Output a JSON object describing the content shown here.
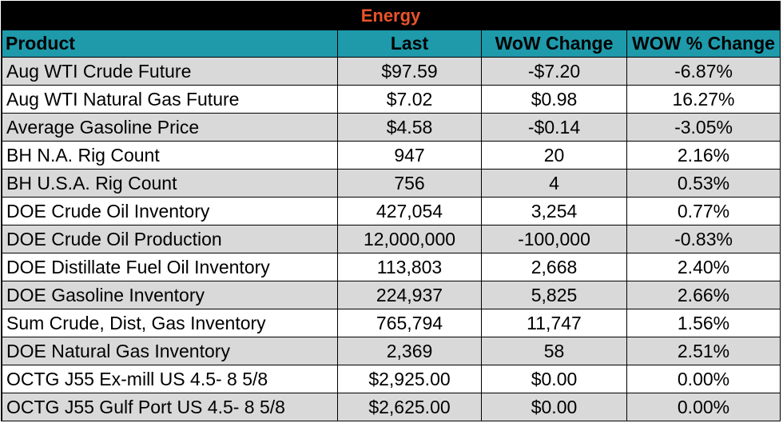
{
  "title": "Energy",
  "headers": [
    "Product",
    "Last",
    "WoW Change",
    "WOW % Change"
  ],
  "rows": [
    [
      "Aug WTI Crude Future",
      "$97.59",
      "-$7.20",
      "-6.87%"
    ],
    [
      "Aug WTI Natural Gas Future",
      "$7.02",
      "$0.98",
      "16.27%"
    ],
    [
      "Average Gasoline Price",
      "$4.58",
      "-$0.14",
      "-3.05%"
    ],
    [
      "BH N.A. Rig Count",
      "947",
      "20",
      "2.16%"
    ],
    [
      "BH U.S.A. Rig Count",
      "756",
      "4",
      "0.53%"
    ],
    [
      "DOE Crude Oil Inventory",
      "427,054",
      "3,254",
      "0.77%"
    ],
    [
      "DOE Crude Oil Production",
      "12,000,000",
      "-100,000",
      "-0.83%"
    ],
    [
      "DOE Distillate Fuel Oil Inventory",
      "113,803",
      "2,668",
      "2.40%"
    ],
    [
      "DOE Gasoline Inventory",
      "224,937",
      "5,825",
      "2.66%"
    ],
    [
      "Sum Crude, Dist, Gas Inventory",
      "765,794",
      "11,747",
      "1.56%"
    ],
    [
      "DOE Natural Gas Inventory",
      "2,369",
      "58",
      "2.51%"
    ],
    [
      "OCTG J55 Ex-mill US 4.5- 8 5/8",
      "$2,925.00",
      "$0.00",
      "0.00%"
    ],
    [
      "OCTG J55 Gulf Port US 4.5- 8 5/8",
      "$2,625.00",
      "$0.00",
      "0.00%"
    ]
  ],
  "colors": {
    "title_bg": "#000000",
    "title_text": "#e8542a",
    "header_bg": "#1e9aab",
    "row_alt": "#d9d9d9",
    "row_plain": "#ffffff"
  }
}
